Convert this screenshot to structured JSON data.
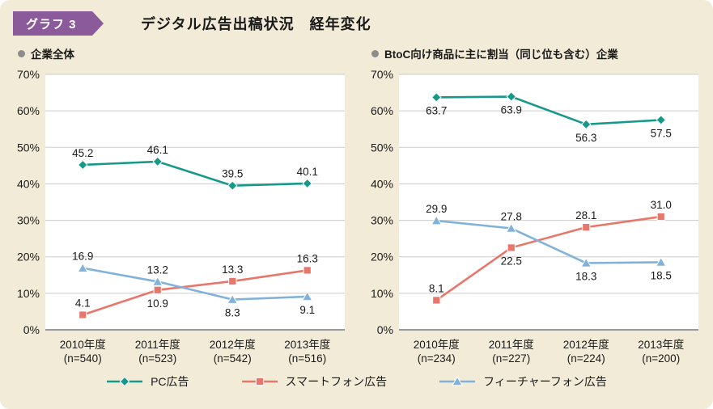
{
  "header": {
    "badge": "グラフ 3",
    "title": "デジタル広告出稿状況　経年変化"
  },
  "colors": {
    "background": "#f2ebd8",
    "badge": "#8b5a9b",
    "panel": "#ffffff",
    "grid": "#cbcbcb",
    "axis": "#7a7a7a",
    "text": "#1a1a1a",
    "bullet": "#8c8c8c",
    "pc": "#17998a",
    "smartphone": "#e8776b",
    "featurephone": "#82b2da"
  },
  "legend": [
    {
      "label": "PC広告",
      "marker": "diamond",
      "color": "#17998a"
    },
    {
      "label": "スマートフォン広告",
      "marker": "square",
      "color": "#e8776b"
    },
    {
      "label": "フィーチャーフォン広告",
      "marker": "triangle",
      "color": "#82b2da"
    }
  ],
  "chart_data": [
    {
      "type": "line",
      "title": "企業全体",
      "categories": [
        "2010年度",
        "2011年度",
        "2012年度",
        "2013年度"
      ],
      "category_sub": [
        "(n=540)",
        "(n=523)",
        "(n=542)",
        "(n=516)"
      ],
      "ylim": [
        0,
        70
      ],
      "ytick_step": 10,
      "ytick_suffix": "%",
      "grid": true,
      "legend_position": "bottom",
      "series": [
        {
          "name": "PC広告",
          "marker": "diamond",
          "color": "#17998a",
          "values": [
            45.2,
            46.1,
            39.5,
            40.1
          ],
          "label_pos": [
            "above",
            "above",
            "above",
            "above"
          ]
        },
        {
          "name": "スマートフォン広告",
          "marker": "square",
          "color": "#e8776b",
          "values": [
            4.1,
            10.9,
            13.3,
            16.3
          ],
          "label_pos": [
            "above",
            "below",
            "above",
            "above"
          ]
        },
        {
          "name": "フィーチャーフォン広告",
          "marker": "triangle",
          "color": "#82b2da",
          "values": [
            16.9,
            13.2,
            8.3,
            9.1
          ],
          "label_pos": [
            "above",
            "above",
            "below",
            "below"
          ]
        }
      ]
    },
    {
      "type": "line",
      "title": "BtoC向け商品に主に割当（同じ位も含む）企業",
      "categories": [
        "2010年度",
        "2011年度",
        "2012年度",
        "2013年度"
      ],
      "category_sub": [
        "(n=234)",
        "(n=227)",
        "(n=224)",
        "(n=200)"
      ],
      "ylim": [
        0,
        70
      ],
      "ytick_step": 10,
      "ytick_suffix": "%",
      "grid": true,
      "legend_position": "bottom",
      "series": [
        {
          "name": "PC広告",
          "marker": "diamond",
          "color": "#17998a",
          "values": [
            63.7,
            63.9,
            56.3,
            57.5
          ],
          "label_pos": [
            "below",
            "below",
            "below",
            "below"
          ]
        },
        {
          "name": "スマートフォン広告",
          "marker": "square",
          "color": "#e8776b",
          "values": [
            8.1,
            22.5,
            28.1,
            31.0
          ],
          "label_pos": [
            "above",
            "below",
            "above",
            "above"
          ]
        },
        {
          "name": "フィーチャーフォン広告",
          "marker": "triangle",
          "color": "#82b2da",
          "values": [
            29.9,
            27.8,
            18.3,
            18.5
          ],
          "label_pos": [
            "above",
            "above",
            "below",
            "below"
          ]
        }
      ]
    }
  ]
}
